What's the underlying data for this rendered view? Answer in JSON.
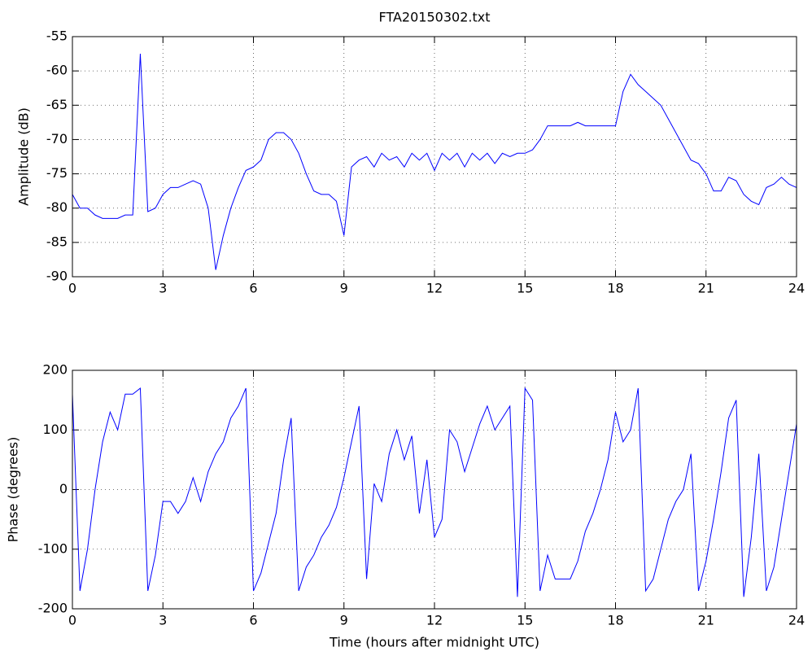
{
  "chart_data": [
    {
      "type": "line",
      "title": "FTA20150302.txt",
      "y_label": "Amplitude (dB)",
      "xlim": [
        0,
        24
      ],
      "xticks": [
        0,
        3,
        6,
        9,
        12,
        15,
        18,
        21,
        24
      ],
      "ylim": [
        -90,
        -55
      ],
      "yticks": [
        -90,
        -85,
        -80,
        -75,
        -70,
        -65,
        -60,
        -55
      ],
      "grid": true,
      "x": [
        0,
        0.25,
        0.5,
        0.75,
        1,
        1.25,
        1.5,
        1.75,
        2,
        2.25,
        2.5,
        2.75,
        3,
        3.25,
        3.5,
        3.75,
        4,
        4.25,
        4.5,
        4.75,
        5,
        5.25,
        5.5,
        5.75,
        6,
        6.25,
        6.5,
        6.75,
        7,
        7.25,
        7.5,
        7.75,
        8,
        8.25,
        8.5,
        8.75,
        9,
        9.25,
        9.5,
        9.75,
        10,
        10.25,
        10.5,
        10.75,
        11,
        11.25,
        11.5,
        11.75,
        12,
        12.25,
        12.5,
        12.75,
        13,
        13.25,
        13.5,
        13.75,
        14,
        14.25,
        14.5,
        14.75,
        15,
        15.25,
        15.5,
        15.75,
        16,
        16.25,
        16.5,
        16.75,
        17,
        17.25,
        17.5,
        17.75,
        18,
        18.25,
        18.5,
        18.75,
        19,
        19.25,
        19.5,
        19.75,
        20,
        20.25,
        20.5,
        20.75,
        21,
        21.25,
        21.5,
        21.75,
        22,
        22.25,
        22.5,
        22.75,
        23,
        23.25,
        23.5,
        23.75,
        24
      ],
      "series": [
        {
          "color": "#0000ff",
          "values": [
            -78,
            -80,
            -80,
            -81,
            -81.5,
            -81.5,
            -81.5,
            -81,
            -81,
            -57.5,
            -80.5,
            -80,
            -78,
            -77,
            -77,
            -76.5,
            -76,
            -76.5,
            -80,
            -89,
            -84,
            -80,
            -77,
            -74.5,
            -74,
            -73,
            -70,
            -69,
            -69,
            -70,
            -72,
            -75,
            -77.5,
            -78,
            -78,
            -79,
            -84,
            -74,
            -73,
            -72.5,
            -74,
            -72,
            -73,
            -72.5,
            -74,
            -72,
            -73,
            -72,
            -74.5,
            -72,
            -73,
            -72,
            -74,
            -72,
            -73,
            -72,
            -73.5,
            -72,
            -72.5,
            -72,
            -72,
            -71.5,
            -70,
            -68,
            -68,
            -68,
            -68,
            -67.5,
            -68,
            -68,
            -68,
            -68,
            -68,
            -63,
            -60.5,
            -62,
            -63,
            -64,
            -65,
            -67,
            -69,
            -71,
            -73,
            -73.5,
            -75,
            -77.5,
            -77.5,
            -75.5,
            -76,
            -78,
            -79,
            -79.5,
            -77,
            -76.5,
            -75.5,
            -76.5,
            -77
          ]
        }
      ]
    },
    {
      "type": "line",
      "x_label": "Time (hours after midnight UTC)",
      "y_label": "Phase (degrees)",
      "xlim": [
        0,
        24
      ],
      "xticks": [
        0,
        3,
        6,
        9,
        12,
        15,
        18,
        21,
        24
      ],
      "ylim": [
        -200,
        200
      ],
      "yticks": [
        -200,
        -100,
        0,
        100,
        200
      ],
      "grid": true,
      "x": [
        0,
        0.25,
        0.5,
        0.75,
        1,
        1.25,
        1.5,
        1.75,
        2,
        2.25,
        2.5,
        2.75,
        3,
        3.25,
        3.5,
        3.75,
        4,
        4.25,
        4.5,
        4.75,
        5,
        5.25,
        5.5,
        5.75,
        6,
        6.25,
        6.5,
        6.75,
        7,
        7.25,
        7.5,
        7.75,
        8,
        8.25,
        8.5,
        8.75,
        9,
        9.25,
        9.5,
        9.75,
        10,
        10.25,
        10.5,
        10.75,
        11,
        11.25,
        11.5,
        11.75,
        12,
        12.25,
        12.5,
        12.75,
        13,
        13.25,
        13.5,
        13.75,
        14,
        14.25,
        14.5,
        14.75,
        15,
        15.25,
        15.5,
        15.75,
        16,
        16.25,
        16.5,
        16.75,
        17,
        17.25,
        17.5,
        17.75,
        18,
        18.25,
        18.5,
        18.75,
        19,
        19.25,
        19.5,
        19.75,
        20,
        20.25,
        20.5,
        20.75,
        21,
        21.25,
        21.5,
        21.75,
        22,
        22.25,
        22.5,
        22.75,
        23,
        23.25,
        23.5,
        23.75,
        24
      ],
      "series": [
        {
          "color": "#0000ff",
          "values": [
            160,
            -170,
            -100,
            0,
            80,
            130,
            100,
            160,
            160,
            170,
            -170,
            -110,
            -20,
            -20,
            -40,
            -20,
            20,
            -20,
            30,
            60,
            80,
            120,
            140,
            170,
            -170,
            -140,
            -90,
            -40,
            50,
            120,
            -170,
            -130,
            -110,
            -80,
            -60,
            -30,
            20,
            80,
            140,
            -150,
            10,
            -20,
            60,
            100,
            50,
            90,
            -40,
            50,
            -80,
            -50,
            100,
            80,
            30,
            70,
            110,
            140,
            100,
            120,
            140,
            -180,
            170,
            150,
            -170,
            -110,
            -150,
            -150,
            -150,
            -120,
            -70,
            -40,
            0,
            50,
            130,
            80,
            100,
            170,
            -170,
            -150,
            -100,
            -50,
            -20,
            0,
            60,
            -170,
            -120,
            -50,
            30,
            120,
            150,
            -180,
            -80,
            60,
            -170,
            -130,
            -50,
            30,
            110
          ]
        }
      ]
    }
  ]
}
